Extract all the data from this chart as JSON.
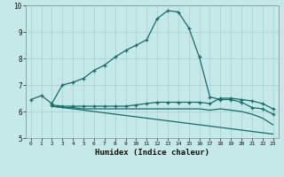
{
  "xlabel": "Humidex (Indice chaleur)",
  "bg_color": "#c5e8e8",
  "grid_color": "#a8d0d0",
  "line_color": "#1a6b6b",
  "xlim": [
    -0.5,
    23.5
  ],
  "ylim": [
    5,
    10
  ],
  "yticks": [
    5,
    6,
    7,
    8,
    9,
    10
  ],
  "xticks": [
    0,
    1,
    2,
    3,
    4,
    5,
    6,
    7,
    8,
    9,
    10,
    11,
    12,
    13,
    14,
    15,
    16,
    17,
    18,
    19,
    20,
    21,
    22,
    23
  ],
  "line1_x": [
    0,
    1,
    2,
    3,
    4,
    5,
    6,
    7,
    8,
    9,
    10,
    11,
    12,
    13,
    14,
    15,
    16,
    17,
    18,
    19,
    20,
    21,
    22,
    23
  ],
  "line1_y": [
    6.45,
    6.6,
    6.3,
    7.0,
    7.1,
    7.25,
    7.55,
    7.75,
    8.05,
    8.3,
    8.5,
    8.7,
    9.5,
    9.8,
    9.75,
    9.15,
    8.05,
    6.55,
    6.45,
    6.45,
    6.35,
    6.15,
    6.1,
    5.9
  ],
  "line2_x": [
    2,
    3,
    4,
    5,
    6,
    7,
    8,
    9,
    10,
    11,
    12,
    13,
    14,
    15,
    16,
    17,
    18,
    19,
    20,
    21,
    22,
    23
  ],
  "line2_y": [
    6.25,
    6.2,
    6.2,
    6.2,
    6.2,
    6.2,
    6.2,
    6.2,
    6.25,
    6.3,
    6.35,
    6.35,
    6.35,
    6.35,
    6.35,
    6.3,
    6.5,
    6.5,
    6.45,
    6.4,
    6.3,
    6.1
  ],
  "line3_x": [
    2,
    3,
    4,
    5,
    6,
    7,
    8,
    9,
    10,
    11,
    12,
    13,
    14,
    15,
    16,
    17,
    18,
    19,
    20,
    21,
    22,
    23
  ],
  "line3_y": [
    6.2,
    6.15,
    6.15,
    6.1,
    6.1,
    6.1,
    6.1,
    6.1,
    6.1,
    6.1,
    6.1,
    6.1,
    6.1,
    6.1,
    6.1,
    6.05,
    6.1,
    6.05,
    6.0,
    5.9,
    5.75,
    5.5
  ],
  "line4_x": [
    2,
    3,
    4,
    5,
    6,
    7,
    8,
    9,
    10,
    11,
    12,
    13,
    14,
    15,
    16,
    17,
    18,
    19,
    20,
    21,
    22,
    23
  ],
  "line4_y": [
    6.2,
    6.15,
    6.1,
    6.05,
    6.0,
    5.95,
    5.9,
    5.85,
    5.8,
    5.75,
    5.7,
    5.65,
    5.6,
    5.55,
    5.5,
    5.45,
    5.4,
    5.35,
    5.3,
    5.25,
    5.2,
    5.15
  ]
}
